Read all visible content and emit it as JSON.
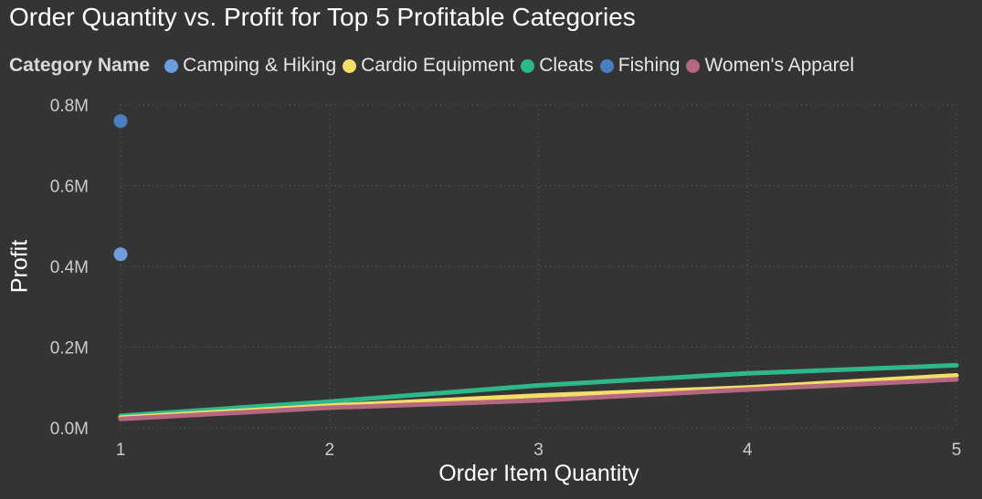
{
  "chart_data": {
    "type": "line",
    "title": "Order Quantity vs. Profit for Top 5 Profitable Categories",
    "legend_title": "Category Name",
    "legend_position": "top-left",
    "xlabel": "Order Item Quantity",
    "ylabel": "Profit",
    "x": [
      1,
      2,
      3,
      4,
      5
    ],
    "x_tick_labels": [
      "1",
      "2",
      "3",
      "4",
      "5"
    ],
    "ylim": [
      0,
      800000
    ],
    "y_ticks": [
      0,
      200000,
      400000,
      600000,
      800000
    ],
    "y_tick_labels": [
      "0.0M",
      "0.2M",
      "0.4M",
      "0.6M",
      "0.8M"
    ],
    "grid": true,
    "series": [
      {
        "name": "Camping & Hiking",
        "color": "#6f9ee0",
        "values": [
          430000,
          null,
          null,
          null,
          null
        ]
      },
      {
        "name": "Cardio Equipment",
        "color": "#f5dd6a",
        "values": [
          25000,
          55000,
          80000,
          100000,
          130000
        ]
      },
      {
        "name": "Cleats",
        "color": "#2eb88a",
        "values": [
          30000,
          65000,
          105000,
          135000,
          155000
        ]
      },
      {
        "name": "Fishing",
        "color": "#4a7fc1",
        "values": [
          760000,
          null,
          null,
          null,
          null
        ]
      },
      {
        "name": "Women's Apparel",
        "color": "#b5677f",
        "values": [
          22000,
          50000,
          68000,
          95000,
          120000
        ]
      }
    ]
  }
}
